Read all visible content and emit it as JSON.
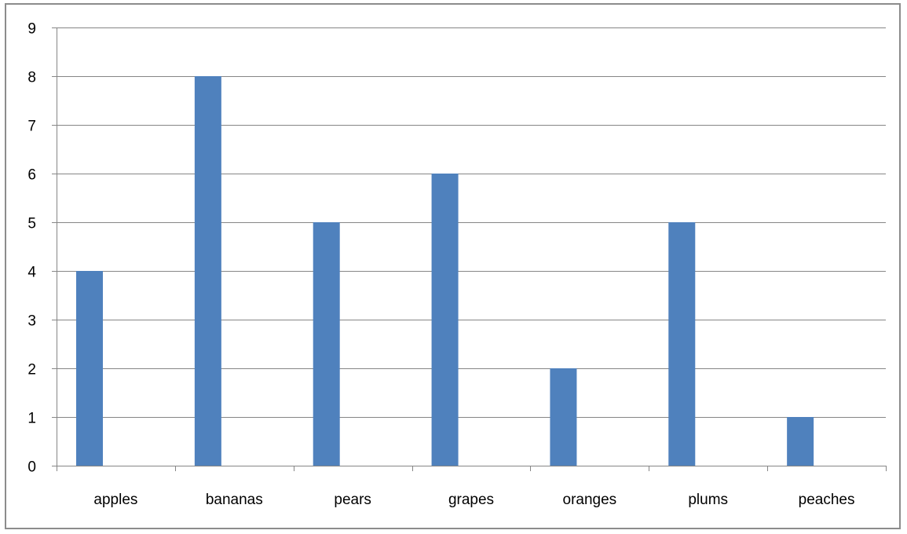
{
  "chart_data": {
    "type": "bar",
    "categories": [
      "apples",
      "bananas",
      "pears",
      "grapes",
      "oranges",
      "plums",
      "peaches"
    ],
    "values": [
      4,
      8,
      5,
      6,
      2,
      5,
      1
    ],
    "title": "",
    "xlabel": "",
    "ylabel": "",
    "ylim": [
      0,
      9
    ],
    "yticks": [
      "0",
      "1",
      "2",
      "3",
      "4",
      "5",
      "6",
      "7",
      "8",
      "9"
    ],
    "grid": true,
    "legend": "none",
    "bar_color": "#4f81bd",
    "grid_color": "#868686"
  }
}
